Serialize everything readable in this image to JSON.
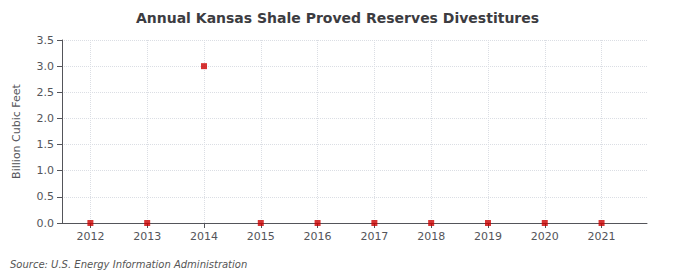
{
  "chart_data": {
    "type": "scatter",
    "title": "Annual Kansas Shale Proved Reserves Divestitures",
    "ylabel": "Billion Cubic Feet",
    "source": "Source: U.S. Energy Information Administration",
    "x": [
      2012,
      2013,
      2014,
      2015,
      2016,
      2017,
      2018,
      2019,
      2020,
      2021
    ],
    "values": [
      0.0,
      0.0,
      3.0,
      0.0,
      0.0,
      0.0,
      0.0,
      0.0,
      0.0,
      0.0
    ],
    "color": "#cc0000",
    "marker": "square",
    "xlim": [
      2011.5,
      2021.8
    ],
    "xticks": [
      2012,
      2013,
      2014,
      2015,
      2016,
      2017,
      2018,
      2019,
      2020,
      2021
    ],
    "ylim": [
      0.0,
      3.5
    ],
    "yticks": [
      {
        "value": 0,
        "label": "0.0"
      },
      0.5,
      {
        "value": 1,
        "label": "1.0"
      },
      1.5,
      {
        "value": 2,
        "label": "2.0"
      },
      2.5,
      {
        "value": 3,
        "label": "3.0"
      },
      3.5
    ],
    "grid": true
  }
}
